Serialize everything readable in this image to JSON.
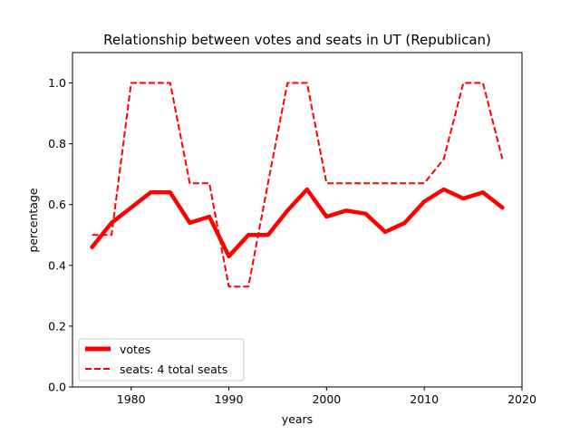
{
  "chart_data": {
    "type": "line",
    "title": "Relationship between votes and seats in UT (Republican)",
    "xlabel": "years",
    "ylabel": "percentage",
    "xlim": [
      1974,
      2020
    ],
    "ylim": [
      0,
      1.1
    ],
    "xticks": [
      1980,
      1990,
      2000,
      2010,
      2020
    ],
    "yticks": [
      0.0,
      0.2,
      0.4,
      0.6,
      0.8,
      1.0
    ],
    "x": [
      1976,
      1978,
      1980,
      1982,
      1984,
      1986,
      1988,
      1990,
      1992,
      1994,
      1996,
      1998,
      2000,
      2002,
      2004,
      2006,
      2008,
      2010,
      2012,
      2014,
      2016,
      2018
    ],
    "series": [
      {
        "name": "votes",
        "color": "#ff0000",
        "style": "solid",
        "values": [
          0.46,
          0.54,
          0.59,
          0.64,
          0.64,
          0.54,
          0.56,
          0.43,
          0.5,
          0.5,
          0.58,
          0.65,
          0.56,
          0.58,
          0.57,
          0.51,
          0.54,
          0.61,
          0.65,
          0.62,
          0.64,
          0.59
        ]
      },
      {
        "name": "seats: 4 total seats",
        "color": "#ff0000",
        "style": "dashed",
        "values": [
          0.5,
          0.5,
          1.0,
          1.0,
          1.0,
          0.67,
          0.67,
          0.33,
          0.33,
          0.67,
          1.0,
          1.0,
          0.67,
          0.67,
          0.67,
          0.67,
          0.67,
          0.67,
          0.75,
          1.0,
          1.0,
          0.75
        ]
      }
    ],
    "legend_position": "lower-left",
    "grid": false
  }
}
